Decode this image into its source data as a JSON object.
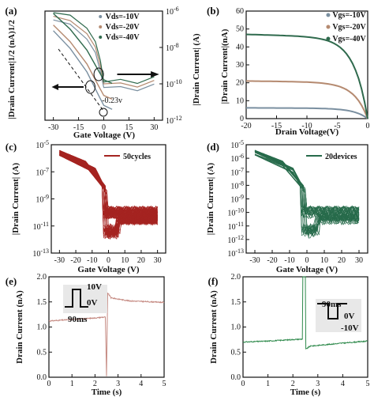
{
  "chart_data": [
    {
      "panel": "(a)",
      "type": "line",
      "xlabel": "Gate Voltage (V)",
      "ylabel_left": "|Drain Current|1/2 (nA)1/2",
      "ylabel_right": "|Drain Current| (A)",
      "xlim": [
        -35,
        35
      ],
      "yright_log": true,
      "yright_lim": [
        1e-12,
        1e-06
      ],
      "xticks": [
        "-30",
        "-15",
        "0",
        "15",
        "30"
      ],
      "yticks_right": [
        "10-6",
        "10-8",
        "10-10",
        "10-12"
      ],
      "annotation": "-0.23v",
      "legend": [
        "Vds=-10V",
        "Vds=-20V",
        "Vds=-40V"
      ],
      "series": [
        {
          "name": "Vds=-10V",
          "color": "#7a8fa0",
          "log_current": [
            [
              -30,
              -6.4
            ],
            [
              -20,
              -6.8
            ],
            [
              -10,
              -7.5
            ],
            [
              -5,
              -8.2
            ],
            [
              -2,
              -9.4
            ],
            [
              0,
              -10.2
            ],
            [
              10,
              -10.2
            ],
            [
              20,
              -10.3
            ],
            [
              30,
              -10.1
            ]
          ]
        },
        {
          "name": "Vds=-20V",
          "color": "#b58a70",
          "log_current": [
            [
              -30,
              -6.2
            ],
            [
              -20,
              -6.6
            ],
            [
              -10,
              -7.2
            ],
            [
              -5,
              -7.9
            ],
            [
              -2,
              -9.1
            ],
            [
              0,
              -10.0
            ],
            [
              10,
              -10.0
            ],
            [
              20,
              -10.1
            ],
            [
              30,
              -9.9
            ]
          ]
        },
        {
          "name": "Vds=-40V",
          "color": "#2f6a4d",
          "log_current": [
            [
              -30,
              -6.0
            ],
            [
              -20,
              -6.3
            ],
            [
              -10,
              -6.9
            ],
            [
              -5,
              -7.6
            ],
            [
              -2,
              -8.8
            ],
            [
              0,
              -9.9
            ],
            [
              10,
              -9.8
            ],
            [
              20,
              -9.9
            ],
            [
              30,
              -9.7
            ]
          ]
        }
      ]
    },
    {
      "panel": "(b)",
      "type": "line",
      "xlabel": "Drain Voltage(V)",
      "ylabel": "|Drain Current|(nA)",
      "xlim": [
        -20,
        0
      ],
      "ylim": [
        0,
        60
      ],
      "xticks": [
        "-20",
        "-15",
        "-10",
        "-5",
        "0"
      ],
      "yticks": [
        "0",
        "10",
        "20",
        "30",
        "40",
        "50",
        "60"
      ],
      "legend": [
        "Vgs=-10V",
        "Vgs=-20V",
        "Vgs=-40V"
      ],
      "series": [
        {
          "name": "Vgs=-10V",
          "color": "#7a8fa0",
          "sat": 6
        },
        {
          "name": "Vgs=-20V",
          "color": "#b58a70",
          "sat": 21
        },
        {
          "name": "Vgs=-40V",
          "color": "#2f6a4d",
          "sat": 47
        }
      ]
    },
    {
      "panel": "(c)",
      "type": "line",
      "xlabel": "Gate Voltage (V)",
      "ylabel": "|Drain Current| (A)",
      "xlim": [
        -35,
        35
      ],
      "ylog": true,
      "ylim": [
        1e-13,
        1e-05
      ],
      "xticks": [
        "-30",
        "-20",
        "-10",
        "0",
        "10",
        "20",
        "30"
      ],
      "yticks": [
        "10-5",
        "10-7",
        "10-9",
        "10-11",
        "10-13"
      ],
      "legend": [
        "50cycles"
      ],
      "color": "#a52421",
      "curves": 50
    },
    {
      "panel": "(d)",
      "type": "line",
      "xlabel": "Gate Voltage (V)",
      "ylabel": "|Drain Current| (A)",
      "xlim": [
        -35,
        35
      ],
      "ylog": true,
      "ylim": [
        1e-13,
        1e-05
      ],
      "xticks": [
        "-30",
        "-20",
        "-10",
        "0",
        "10",
        "20",
        "30"
      ],
      "yticks": [
        "10-5",
        "10-6",
        "10-7",
        "10-8",
        "10-9",
        "10-10",
        "10-11",
        "10-12",
        "10-13"
      ],
      "legend": [
        "20devices"
      ],
      "color": "#276b4b",
      "curves": 20
    },
    {
      "panel": "(e)",
      "type": "line",
      "xlabel": "Time (s)",
      "ylabel": "Drain Current (nA)",
      "xlim": [
        0,
        5
      ],
      "ylim": [
        0,
        2.0
      ],
      "xticks": [
        "0",
        "1",
        "2",
        "3",
        "4",
        "5"
      ],
      "yticks": [
        "0.0",
        "0.5",
        "1.0",
        "1.5",
        "2.0"
      ],
      "pulse_labels": [
        "10V",
        "0V",
        "90ms"
      ],
      "color": "#c58a82",
      "points": [
        [
          0,
          1.12
        ],
        [
          1,
          1.15
        ],
        [
          2,
          1.18
        ],
        [
          2.45,
          1.2
        ],
        [
          2.5,
          0.02
        ],
        [
          2.55,
          1.68
        ],
        [
          2.7,
          1.58
        ],
        [
          3.5,
          1.52
        ],
        [
          5,
          1.49
        ]
      ]
    },
    {
      "panel": "(f)",
      "type": "line",
      "xlabel": "Time (s)",
      "ylabel": "Drain Current (nA)",
      "xlim": [
        0,
        5
      ],
      "ylim": [
        0,
        2.0
      ],
      "xticks": [
        "0",
        "1",
        "2",
        "3",
        "4",
        "5"
      ],
      "yticks": [
        "0.0",
        "0.5",
        "1.0",
        "1.5",
        "2.0"
      ],
      "pulse_labels": [
        "90ms",
        "0V",
        "-10V"
      ],
      "color": "#2f8a4c",
      "points": [
        [
          0,
          0.7
        ],
        [
          1,
          0.72
        ],
        [
          2,
          0.75
        ],
        [
          2.38,
          0.76
        ],
        [
          2.4,
          2.0
        ],
        [
          2.5,
          2.0
        ],
        [
          2.52,
          0.56
        ],
        [
          2.7,
          0.62
        ],
        [
          4,
          0.68
        ],
        [
          5,
          0.72
        ]
      ]
    }
  ]
}
